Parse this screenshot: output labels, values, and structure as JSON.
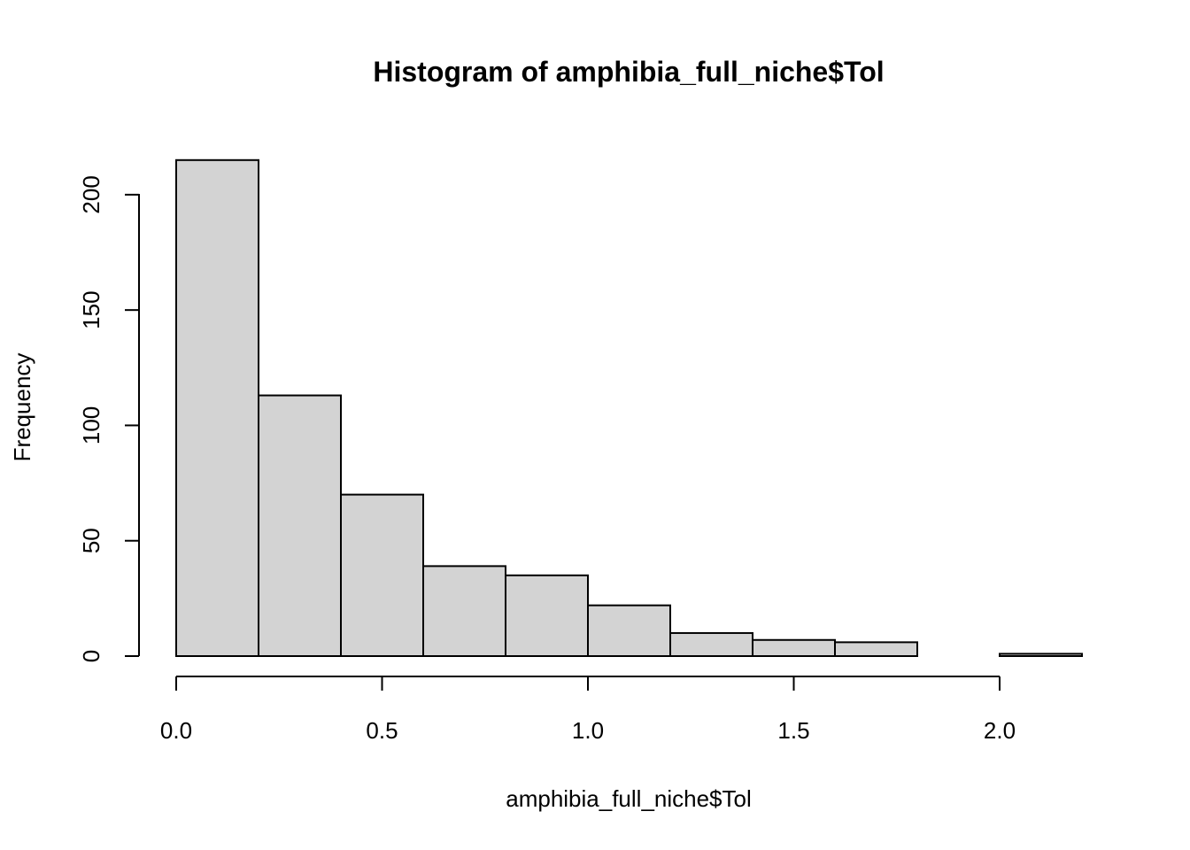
{
  "chart_data": {
    "type": "bar",
    "title": "Histogram of amphibia_full_niche$Tol",
    "xlabel": "amphibia_full_niche$Tol",
    "ylabel": "Frequency",
    "bins": [
      {
        "start": 0.0,
        "end": 0.2,
        "count": 215
      },
      {
        "start": 0.2,
        "end": 0.4,
        "count": 113
      },
      {
        "start": 0.4,
        "end": 0.6,
        "count": 70
      },
      {
        "start": 0.6,
        "end": 0.8,
        "count": 39
      },
      {
        "start": 0.8,
        "end": 1.0,
        "count": 35
      },
      {
        "start": 1.0,
        "end": 1.2,
        "count": 22
      },
      {
        "start": 1.2,
        "end": 1.4,
        "count": 10
      },
      {
        "start": 1.4,
        "end": 1.6,
        "count": 7
      },
      {
        "start": 1.6,
        "end": 1.8,
        "count": 6
      },
      {
        "start": 1.8,
        "end": 2.0,
        "count": 0
      },
      {
        "start": 2.0,
        "end": 2.2,
        "count": 1
      }
    ],
    "xlim": [
      0.0,
      2.2
    ],
    "ylim": [
      0,
      215
    ],
    "x_ticks": [
      "0.0",
      "0.5",
      "1.0",
      "1.5",
      "2.0"
    ],
    "y_ticks": [
      "0",
      "50",
      "100",
      "150",
      "200"
    ],
    "bar_color": "#d3d3d3",
    "grid": false,
    "legend": "none"
  }
}
